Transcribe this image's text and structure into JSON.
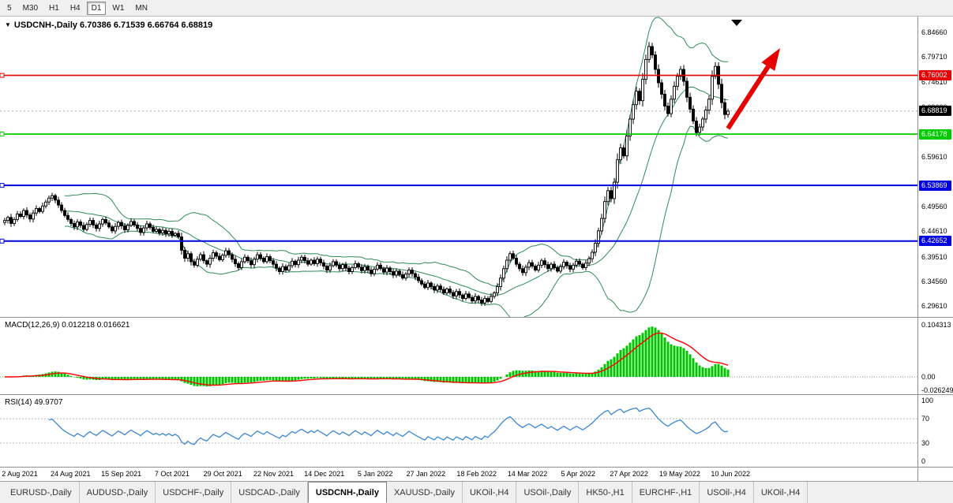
{
  "toolbar": {
    "timeframes": [
      "5",
      "M30",
      "H1",
      "H4",
      "D1",
      "W1",
      "MN"
    ],
    "active_timeframe": "D1"
  },
  "chart": {
    "header": "USDCNH-,Daily  6.70386 6.71539 6.66764 6.68819",
    "dropdown_glyph": "▼"
  },
  "chart_data": {
    "type": "candlestick",
    "symbol": "USDCNH-",
    "timeframe": "Daily",
    "ohlc_current": {
      "open": 6.70386,
      "high": 6.71539,
      "low": 6.66764,
      "close": 6.68819
    },
    "candle_colors": {
      "bull_fill": "#ffffff",
      "bear_fill": "#000000",
      "outline": "#000000"
    },
    "closes": [
      6.468,
      6.474,
      6.462,
      6.47,
      6.481,
      6.476,
      6.488,
      6.479,
      6.471,
      6.483,
      6.492,
      6.486,
      6.497,
      6.505,
      6.513,
      6.518,
      6.509,
      6.499,
      6.488,
      6.478,
      6.47,
      6.462,
      6.455,
      6.465,
      6.458,
      6.45,
      6.46,
      6.468,
      6.459,
      6.452,
      6.461,
      6.47,
      6.463,
      6.455,
      6.447,
      6.456,
      6.464,
      6.457,
      6.449,
      6.458,
      6.466,
      6.459,
      6.452,
      6.444,
      6.453,
      6.461,
      6.454,
      6.446,
      6.45,
      6.443,
      6.448,
      6.441,
      6.446,
      6.438,
      6.442,
      6.435,
      6.408,
      6.392,
      6.401,
      6.385,
      6.378,
      6.39,
      6.399,
      6.387,
      6.38,
      6.392,
      6.403,
      6.396,
      6.389,
      6.398,
      6.407,
      6.399,
      6.39,
      6.381,
      6.373,
      6.385,
      6.394,
      6.387,
      6.379,
      6.39,
      6.399,
      6.392,
      6.385,
      6.395,
      6.387,
      6.38,
      6.372,
      6.365,
      6.375,
      6.368,
      6.377,
      6.386,
      6.379,
      6.388,
      6.394,
      6.387,
      6.38,
      6.388,
      6.381,
      6.39,
      6.383,
      6.376,
      6.368,
      6.377,
      6.385,
      6.378,
      6.371,
      6.379,
      6.372,
      6.365,
      6.373,
      6.381,
      6.374,
      6.367,
      6.375,
      6.368,
      6.361,
      6.37,
      6.378,
      6.371,
      6.364,
      6.372,
      6.365,
      6.358,
      6.366,
      6.359,
      6.352,
      6.36,
      6.368,
      6.361,
      6.354,
      6.347,
      6.34,
      6.333,
      6.342,
      6.335,
      6.328,
      6.336,
      6.329,
      6.322,
      6.33,
      6.323,
      6.316,
      6.325,
      6.318,
      6.311,
      6.32,
      6.313,
      6.306,
      6.315,
      6.308,
      6.302,
      6.311,
      6.305,
      6.315,
      6.322,
      6.335,
      6.352,
      6.371,
      6.388,
      6.401,
      6.392,
      6.38,
      6.371,
      6.363,
      6.374,
      6.383,
      6.376,
      6.368,
      6.378,
      6.387,
      6.379,
      6.371,
      6.38,
      6.373,
      6.366,
      6.375,
      6.384,
      6.377,
      6.37,
      6.378,
      6.386,
      6.38,
      6.373,
      6.382,
      6.391,
      6.404,
      6.422,
      6.447,
      6.472,
      6.506,
      6.528,
      6.512,
      6.545,
      6.59,
      6.614,
      6.598,
      6.638,
      6.672,
      6.701,
      6.728,
      6.709,
      6.752,
      6.792,
      6.818,
      6.801,
      6.772,
      6.745,
      6.722,
      6.698,
      6.683,
      6.712,
      6.738,
      6.758,
      6.772,
      6.748,
      6.716,
      6.692,
      6.668,
      6.645,
      6.656,
      6.672,
      6.69,
      6.712,
      6.758,
      6.778,
      6.742,
      6.705,
      6.681,
      6.688
    ],
    "x_dates": [
      "2 Aug 2021",
      "24 Aug 2021",
      "15 Sep 2021",
      "7 Oct 2021",
      "29 Oct 2021",
      "22 Nov 2021",
      "14 Dec 2021",
      "5 Jan 2022",
      "27 Jan 2022",
      "18 Feb 2022",
      "14 Mar 2022",
      "5 Apr 2022",
      "27 Apr 2022",
      "19 May 2022",
      "10 Jun 2022"
    ],
    "y_ticks": [
      {
        "label": "6.84660",
        "value": 6.8466
      },
      {
        "label": "6.79710",
        "value": 6.7971
      },
      {
        "label": "6.74610",
        "value": 6.7461
      },
      {
        "label": "6.69660",
        "value": 6.6966
      },
      {
        "label": "6.59610",
        "value": 6.5961
      },
      {
        "label": "6.49560",
        "value": 6.4956
      },
      {
        "label": "6.44610",
        "value": 6.4461
      },
      {
        "label": "6.39510",
        "value": 6.3951
      },
      {
        "label": "6.34560",
        "value": 6.3456
      },
      {
        "label": "6.29610",
        "value": 6.2961
      }
    ],
    "hlines": [
      {
        "label": "6.76002",
        "value": 6.76002,
        "color": "#e60000",
        "width": 1.6
      },
      {
        "label": "6.64178",
        "value": 6.64178,
        "color": "#00cc00",
        "width": 1.8
      },
      {
        "label": "6.53869",
        "value": 6.53869,
        "color": "#0000e0",
        "width": 2
      },
      {
        "label": "6.42652",
        "value": 6.42652,
        "color": "#0000e0",
        "width": 2
      }
    ],
    "current_price": {
      "label": "6.68819",
      "value": 6.68819,
      "badge_color": "#000000"
    },
    "annotations": {
      "up_arrow_color": "#e60000",
      "marker_triangle_color": "#000000"
    },
    "indicators": {
      "bollinger": {
        "period": 20,
        "deviation": 2,
        "color": "#2e8b57"
      },
      "macd": {
        "label": "MACD(12,26,9) 0.012218 0.016621",
        "histogram_color": "#00c400",
        "signal_color": "#ff0000",
        "axis_ticks": [
          {
            "label": "0.104313",
            "value": 0.104313
          },
          {
            "label": "0.00",
            "value": 0
          },
          {
            "label": "-0.026249",
            "value": -0.026249
          }
        ]
      },
      "rsi": {
        "label": "RSI(14) 49.9707",
        "line_color": "#3a86d6",
        "levels": [
          {
            "label": "100",
            "value": 100
          },
          {
            "label": "70",
            "value": 70
          },
          {
            "label": "30",
            "value": 30
          },
          {
            "label": "0",
            "value": 0
          }
        ]
      }
    }
  },
  "tabs": {
    "items": [
      {
        "label": "EURUSD-,Daily",
        "active": false
      },
      {
        "label": "AUDUSD-,Daily",
        "active": false
      },
      {
        "label": "USDCHF-,Daily",
        "active": false
      },
      {
        "label": "USDCAD-,Daily",
        "active": false
      },
      {
        "label": "USDCNH-,Daily",
        "active": true
      },
      {
        "label": "XAUUSD-,Daily",
        "active": false
      },
      {
        "label": "UKOil-,H4",
        "active": false
      },
      {
        "label": "USOil-,Daily",
        "active": false
      },
      {
        "label": "HK50-,H1",
        "active": false
      },
      {
        "label": "EURCHF-,H1",
        "active": false
      },
      {
        "label": "USOil-,H4",
        "active": false
      },
      {
        "label": "UKOil-,H4",
        "active": false
      }
    ]
  }
}
